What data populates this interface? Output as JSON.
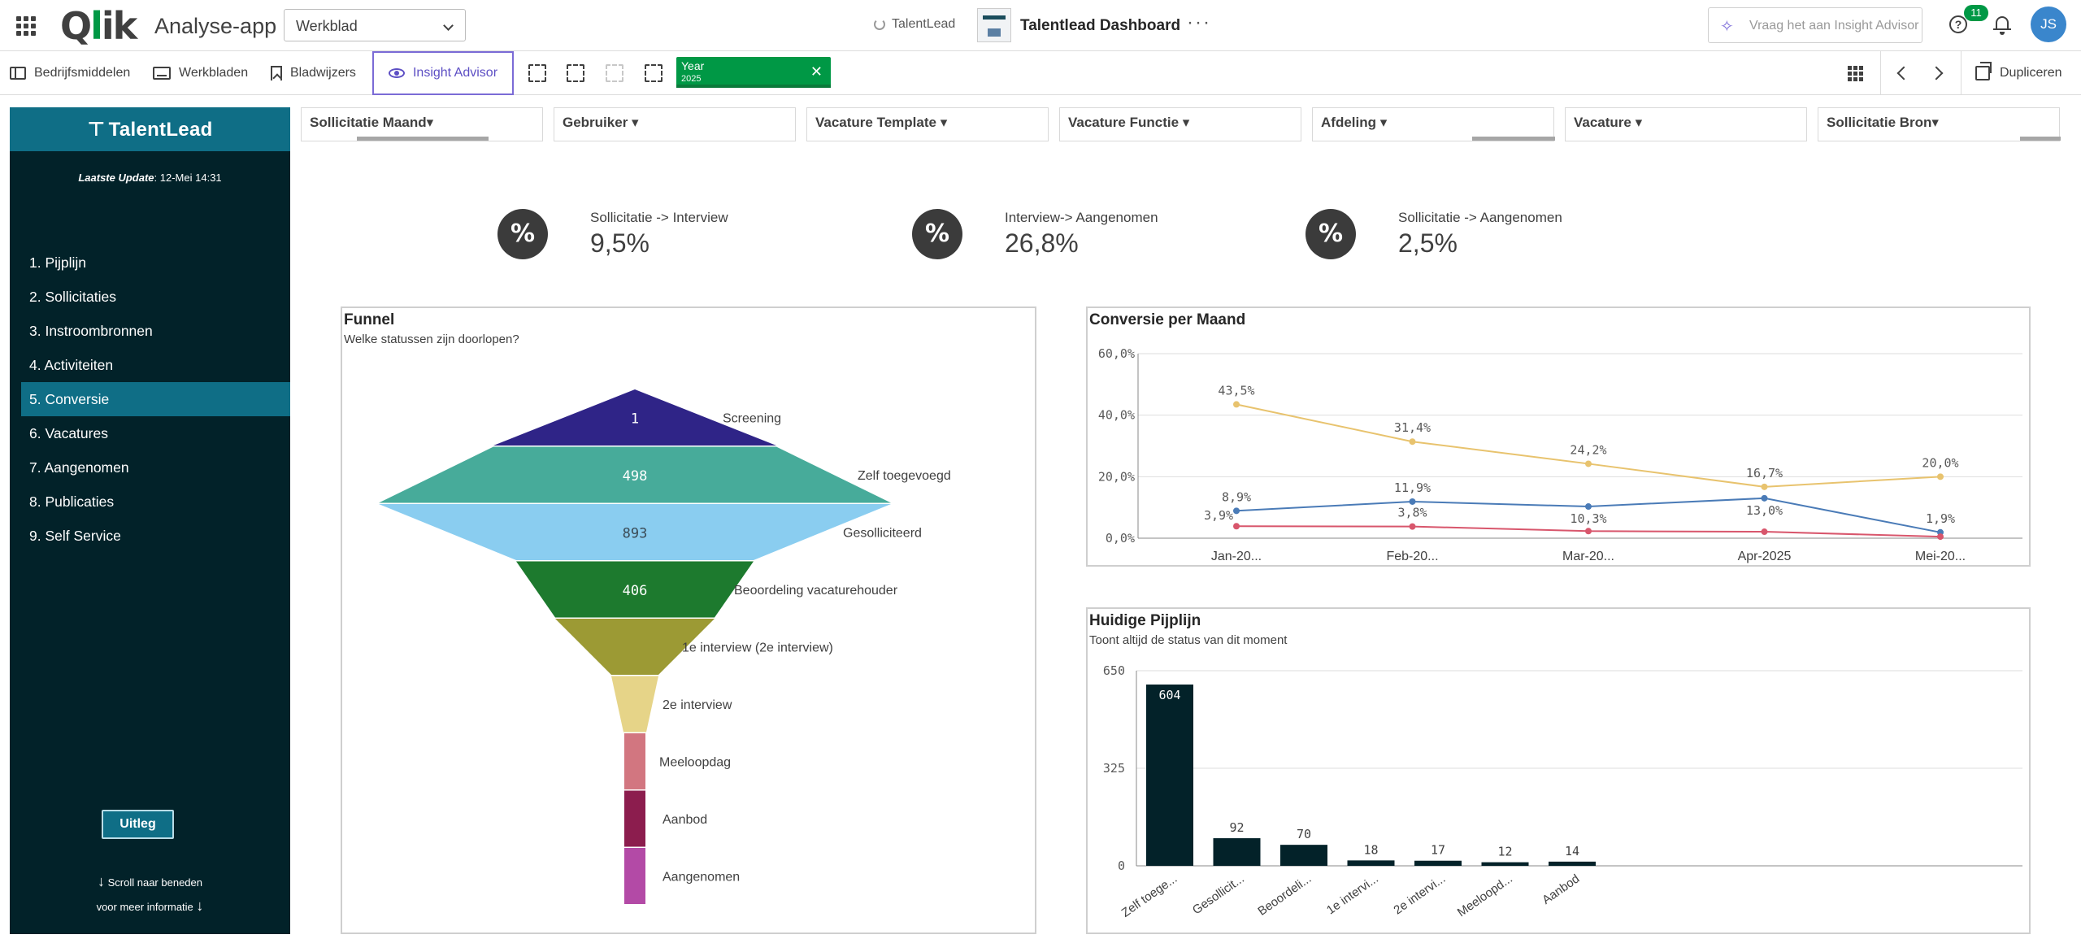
{
  "header": {
    "app_title": "Analyse-app",
    "sheet_select": "Werkblad",
    "space": "TalentLead",
    "dashboard_title": "Talentlead Dashboard",
    "more": "···",
    "ask_placeholder": "Vraag het aan Insight Advisor",
    "help_badge": "11",
    "avatar": "JS"
  },
  "toolbar": {
    "assets": "Bedrijfsmiddelen",
    "sheets": "Werkbladen",
    "bookmarks": "Bladwijzers",
    "insight": "Insight Advisor",
    "selection": {
      "field": "Year",
      "value": "2025"
    },
    "duplicate": "Dupliceren"
  },
  "sidebar": {
    "brand": "TalentLead",
    "last_update_label": "Laatste Update",
    "last_update_value": ": 12-Mei 14:31",
    "items": [
      {
        "label": "1. Pijplijn",
        "active": false
      },
      {
        "label": "2. Sollicitaties",
        "active": false
      },
      {
        "label": "3. Instroombronnen",
        "active": false
      },
      {
        "label": "4. Activiteiten",
        "active": false
      },
      {
        "label": "5. Conversie",
        "active": true
      },
      {
        "label": "6. Vacatures",
        "active": false
      },
      {
        "label": "7. Aangenomen",
        "active": false
      },
      {
        "label": "8. Publicaties",
        "active": false
      },
      {
        "label": "9. Self Service",
        "active": false
      }
    ],
    "button": "Uitleg",
    "scroll_line1": "Scroll naar beneden",
    "scroll_line2": "voor meer informatie"
  },
  "filters": [
    {
      "label": "Sollicitatie Maand▾"
    },
    {
      "label": "Gebruiker ▾"
    },
    {
      "label": "Vacature Template ▾"
    },
    {
      "label": "Vacature Functie ▾"
    },
    {
      "label": "Afdeling ▾"
    },
    {
      "label": "Vacature ▾"
    },
    {
      "label": "Sollicitatie Bron▾"
    }
  ],
  "kpis": [
    {
      "icon": "%",
      "label": "Sollicitatie -> Interview",
      "value": "9,5%"
    },
    {
      "icon": "%",
      "label": "Interview-> Aangenomen",
      "value": "26,8%"
    },
    {
      "icon": "%",
      "label": "Sollicitatie -> Aangenomen",
      "value": "2,5%"
    }
  ],
  "funnel": {
    "title": "Funnel",
    "subtitle": "Welke statussen zijn doorlopen?",
    "colors": [
      "#2f2487",
      "#47ab9a",
      "#8acdf0",
      "#1d7a2e",
      "#9c9a34",
      "#e6d488",
      "#d27680",
      "#8c1d4e",
      "#b34aa6"
    ],
    "stages": [
      {
        "label": "Screening",
        "value": "1"
      },
      {
        "label": "Zelf toegevoegd",
        "value": "498"
      },
      {
        "label": "Gesolliciteerd",
        "value": "893"
      },
      {
        "label": "Beoordeling vacaturehouder",
        "value": "406"
      },
      {
        "label": "1e interview (2e interview)",
        "value": ""
      },
      {
        "label": "2e interview",
        "value": ""
      },
      {
        "label": "Meeloopdag",
        "value": ""
      },
      {
        "label": "Aanbod",
        "value": ""
      },
      {
        "label": "Aangenomen",
        "value": ""
      }
    ]
  },
  "conversion_chart": {
    "title": "Conversie per Maand",
    "chart_data": {
      "type": "line",
      "categories": [
        "Jan-20...",
        "Feb-20...",
        "Mar-20...",
        "Apr-2025",
        "Mei-20..."
      ],
      "y_ticks": [
        "60,0%",
        "40,0%",
        "20,0%",
        "0,0%"
      ],
      "ylim": [
        0,
        60
      ],
      "grid": true,
      "series": [
        {
          "color": "#e8c36e",
          "values": [
            43.5,
            31.4,
            24.2,
            16.7,
            20.0
          ],
          "labels": [
            "43,5%",
            "31,4%",
            "24,2%",
            "16,7%",
            "20,0%"
          ]
        },
        {
          "color": "#4a7bb7",
          "values": [
            8.9,
            11.9,
            10.3,
            13.0,
            1.9
          ],
          "labels": [
            "8,9%",
            "11,9%",
            "10,3%",
            "13,0%",
            "1,9%"
          ]
        },
        {
          "color": "#d8566c",
          "values": [
            3.9,
            3.8,
            2.3,
            2.1,
            0.5
          ],
          "labels": [
            "3,9%",
            "3,8%",
            "",
            "",
            ""
          ]
        }
      ]
    }
  },
  "pipeline_chart": {
    "title": "Huidige Pijplijn",
    "subtitle": "Toont altijd de status van dit moment",
    "chart_data": {
      "type": "bar",
      "categories": [
        "Zelf toege...",
        "Gesollicit...",
        "Beoordeli...",
        "1e intervi...",
        "2e intervi...",
        "Meeloopd...",
        "Aanbod"
      ],
      "values": [
        604,
        92,
        70,
        18,
        17,
        12,
        14
      ],
      "y_ticks": [
        "650",
        "325",
        "0"
      ],
      "ylim": [
        0,
        650
      ],
      "bar_color": "#032229"
    }
  }
}
